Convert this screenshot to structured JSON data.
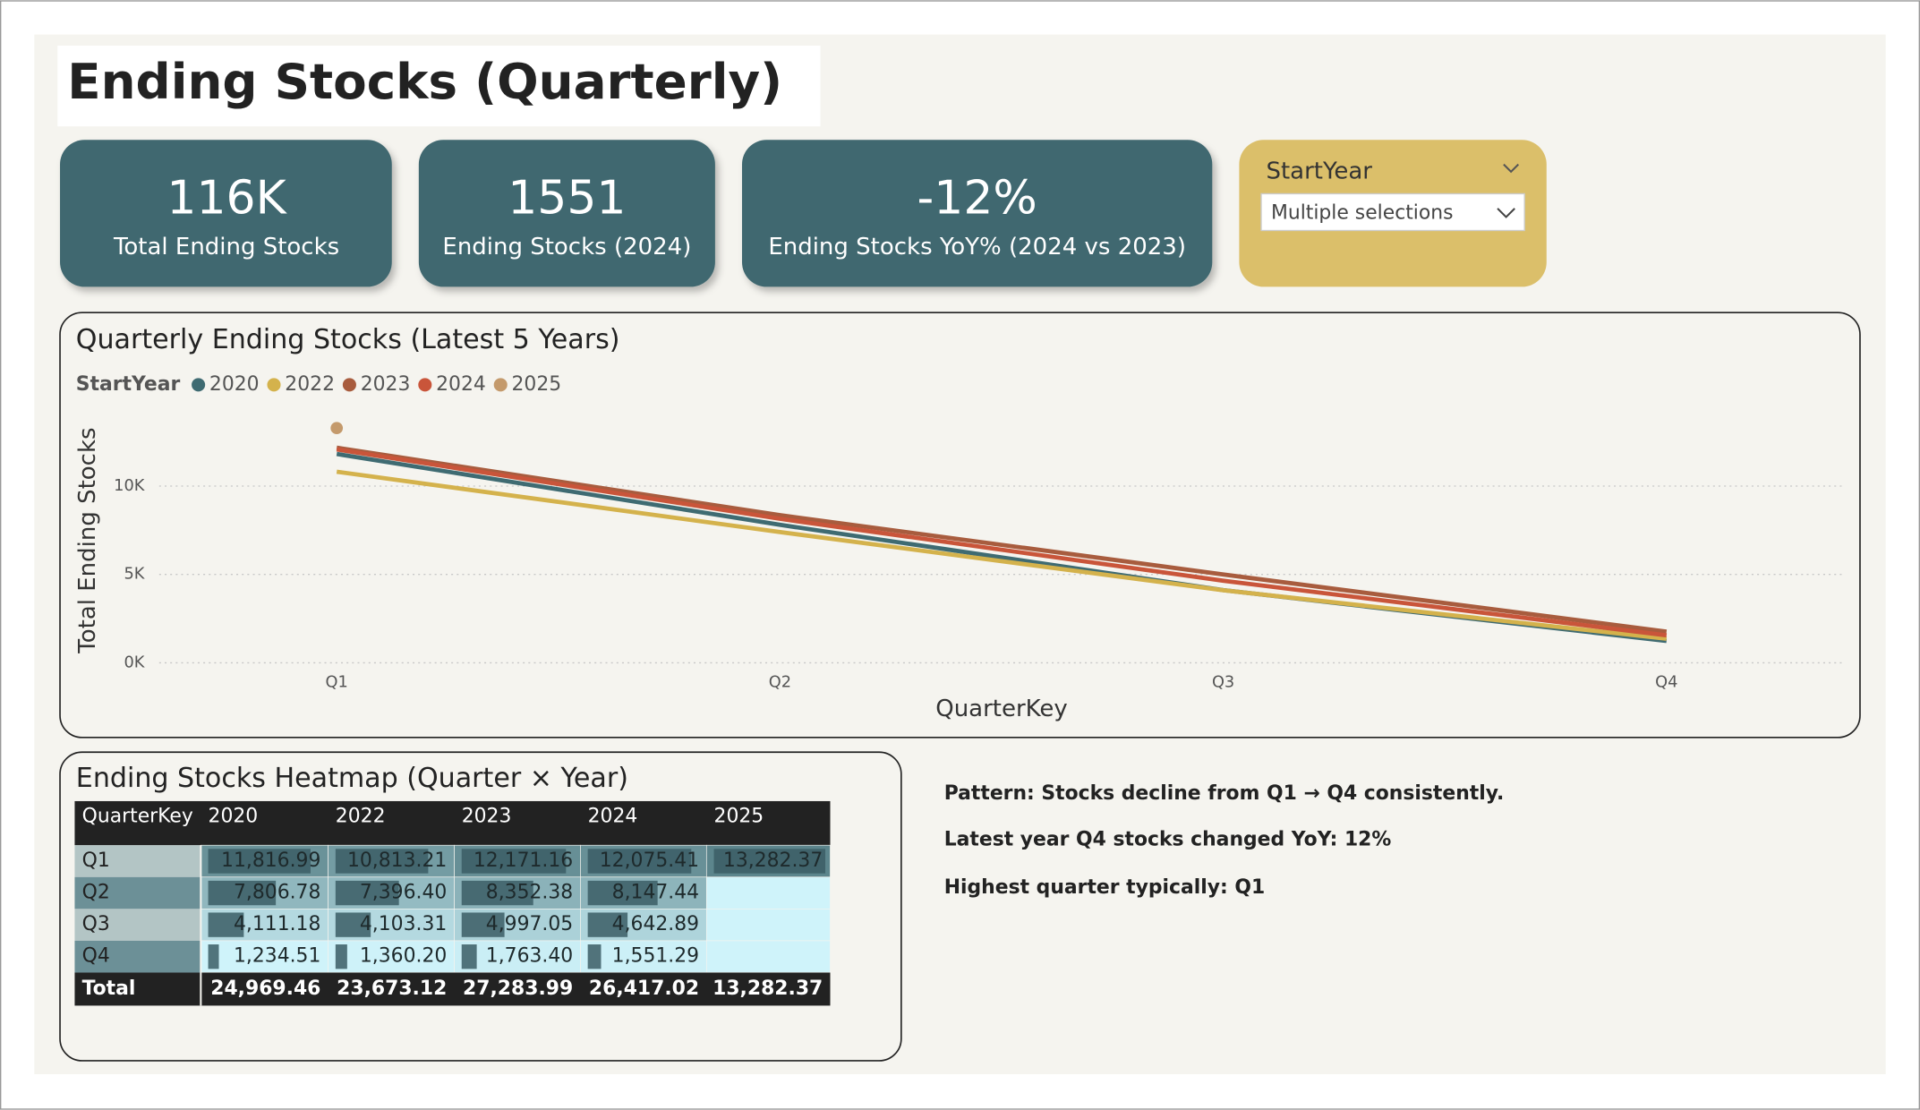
{
  "header": {
    "title": "Ending Stocks (Quarterly)"
  },
  "kpis": [
    {
      "value": "116K",
      "label": "Total Ending Stocks"
    },
    {
      "value": "1551",
      "label": "Ending Stocks (2024)"
    },
    {
      "value": "-12%",
      "label": "Ending Stocks YoY% (2024 vs 2023)"
    }
  ],
  "slicer": {
    "title": "StartYear",
    "selection": "Multiple selections"
  },
  "chart_data": {
    "type": "line",
    "title": "Quarterly Ending Stocks (Latest 5 Years)",
    "legend_title": "StartYear",
    "x_label": "QuarterKey",
    "y_label": "Total Ending Stocks",
    "categories": [
      "Q1",
      "Q2",
      "Q3",
      "Q4"
    ],
    "series": [
      {
        "name": "2020",
        "color": "#3f6b72",
        "values": [
          11816.99,
          7806.78,
          4111.18,
          1234.51
        ]
      },
      {
        "name": "2022",
        "color": "#d4b24c",
        "values": [
          10813.21,
          7396.4,
          4103.31,
          1360.2
        ]
      },
      {
        "name": "2023",
        "color": "#a85c3e",
        "values": [
          12171.16,
          8352.38,
          4997.05,
          1763.4
        ]
      },
      {
        "name": "2024",
        "color": "#c9553a",
        "values": [
          12075.41,
          8147.44,
          4642.89,
          1551.29
        ]
      },
      {
        "name": "2025",
        "color": "#c49a6c",
        "values": [
          13282.37,
          null,
          null,
          null
        ]
      }
    ],
    "ylim": [
      0,
      14000
    ],
    "yticks": [
      {
        "value": 0,
        "label": "0K"
      },
      {
        "value": 5000,
        "label": "5K"
      },
      {
        "value": 10000,
        "label": "10K"
      }
    ],
    "grid": true
  },
  "heatmap": {
    "title": "Ending Stocks Heatmap (Quarter × Year)",
    "columns": [
      "QuarterKey",
      "2020",
      "2022",
      "2023",
      "2024",
      "2025"
    ],
    "rows": [
      {
        "label": "Q1",
        "values": [
          11816.99,
          10813.21,
          12171.16,
          12075.41,
          13282.37
        ],
        "value_labels": [
          "11,816.99",
          "10,813.21",
          "12,171.16",
          "12,075.41",
          "13,282.37"
        ]
      },
      {
        "label": "Q2",
        "values": [
          7806.78,
          7396.4,
          8352.38,
          8147.44,
          null
        ],
        "value_labels": [
          "7,806.78",
          "7,396.40",
          "8,352.38",
          "8,147.44",
          null
        ]
      },
      {
        "label": "Q3",
        "values": [
          4111.18,
          4103.31,
          4997.05,
          4642.89,
          null
        ],
        "value_labels": [
          "4,111.18",
          "4,103.31",
          "4,997.05",
          "4,642.89",
          null
        ]
      },
      {
        "label": "Q4",
        "values": [
          1234.51,
          1360.2,
          1763.4,
          1551.29,
          null
        ],
        "value_labels": [
          "1,234.51",
          "1,360.20",
          "1,763.40",
          "1,551.29",
          null
        ]
      }
    ],
    "total": {
      "label": "Total",
      "value_labels": [
        "24,969.46",
        "23,673.12",
        "27,283.99",
        "26,417.02",
        "13,282.37"
      ]
    }
  },
  "notes": [
    "Pattern: Stocks decline from Q1 → Q4 consistently.",
    "Latest year Q4 stocks changed YoY: 12%",
    "Highest quarter typically: Q1"
  ]
}
